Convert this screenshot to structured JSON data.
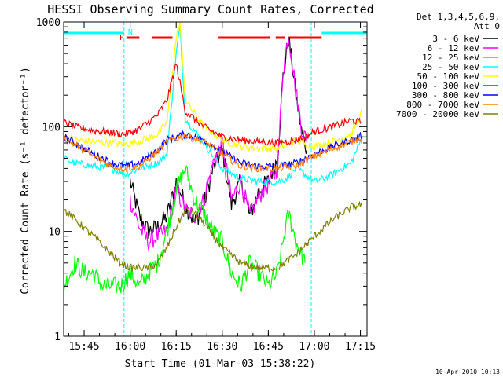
{
  "chart_data": {
    "type": "line",
    "title": "HESSI Observing Summary Count Rates, Corrected",
    "xlabel": "Start Time (01-Mar-03 15:38:22)",
    "ylabel": "Corrected Count Rate (s⁻¹ detector⁻¹)",
    "xlim": [
      15.6389,
      17.2861
    ],
    "ylim": [
      1,
      1000
    ],
    "yscale": "log",
    "x_ticks": [
      {
        "label": "15:45",
        "value": 15.75
      },
      {
        "label": "16:00",
        "value": 16.0
      },
      {
        "label": "16:15",
        "value": 16.25
      },
      {
        "label": "16:30",
        "value": 16.5
      },
      {
        "label": "16:45",
        "value": 16.75
      },
      {
        "label": "17:00",
        "value": 17.0
      },
      {
        "label": "17:15",
        "value": 17.25
      }
    ],
    "y_ticks": [
      {
        "label": "1",
        "value": 1
      },
      {
        "label": "10",
        "value": 10
      },
      {
        "label": "100",
        "value": 100
      },
      {
        "label": "1000",
        "value": 1000
      }
    ],
    "legend_header": [
      "Det 1,3,4,5,6,9,",
      "Att 0"
    ],
    "legend_position": "right",
    "timestamp": "10-Apr-2010 10:13",
    "night_flags": {
      "label": "N",
      "color": "#00ffff",
      "segments": [
        [
          15.6389,
          15.9667
        ],
        [
          17.04,
          17.2861
        ]
      ],
      "boundaries": [
        15.9667,
        16.9833,
        17.2861
      ]
    },
    "flare_flags": {
      "label": "F",
      "color": "#ff0000",
      "segments": [
        [
          15.98,
          16.05
        ],
        [
          16.12,
          16.23
        ],
        [
          16.48,
          16.76
        ],
        [
          16.79,
          16.84
        ],
        [
          16.86,
          17.04
        ]
      ]
    },
    "series": [
      {
        "name": "3 - 6 keV",
        "color": "#000000",
        "x": [
          16.0,
          16.05,
          16.1,
          16.15,
          16.2,
          16.25,
          16.3,
          16.35,
          16.4,
          16.45,
          16.5,
          16.55,
          16.6,
          16.65,
          16.7,
          16.75,
          16.8,
          16.83,
          16.86,
          16.88,
          16.9,
          16.93,
          16.96
        ],
        "y": [
          30,
          14,
          10,
          11,
          14,
          30,
          18,
          12,
          18,
          40,
          60,
          18,
          30,
          14,
          25,
          30,
          50,
          300,
          700,
          400,
          200,
          90,
          60
        ]
      },
      {
        "name": "6 - 12 keV",
        "color": "#ff00ff",
        "x": [
          16.0,
          16.05,
          16.1,
          16.15,
          16.2,
          16.25,
          16.3,
          16.35,
          16.4,
          16.45,
          16.5,
          16.55,
          16.6,
          16.65,
          16.7,
          16.75,
          16.8,
          16.83,
          16.86,
          16.88,
          16.9,
          16.93,
          16.96
        ],
        "y": [
          20,
          11,
          8,
          9,
          10,
          25,
          16,
          14,
          20,
          45,
          70,
          20,
          30,
          14,
          22,
          28,
          40,
          350,
          750,
          420,
          220,
          100,
          70
        ]
      },
      {
        "name": "12 - 25 keV",
        "color": "#00ff00",
        "x": [
          15.64,
          15.7,
          15.75,
          15.8,
          15.85,
          15.9,
          15.95,
          16.0,
          16.05,
          16.1,
          16.15,
          16.2,
          16.25,
          16.3,
          16.35,
          16.4,
          16.45,
          16.5,
          16.55,
          16.6,
          16.65,
          16.7,
          16.75,
          16.8,
          16.83,
          16.86,
          16.9,
          16.95
        ],
        "y": [
          3,
          5,
          4,
          4,
          3,
          3,
          3,
          4,
          3,
          4,
          5,
          10,
          25,
          40,
          20,
          15,
          10,
          8,
          4,
          3,
          5,
          4,
          3,
          4,
          8,
          15,
          8,
          5
        ]
      },
      {
        "name": "25 - 50 keV",
        "color": "#00ffff",
        "x": [
          15.64,
          15.7,
          15.8,
          15.9,
          15.97,
          16.05,
          16.15,
          16.2,
          16.25,
          16.27,
          16.3,
          16.4,
          16.5,
          16.6,
          16.7,
          16.8,
          16.85,
          16.9,
          16.95,
          17.0,
          17.05,
          17.1,
          17.15,
          17.2,
          17.26
        ],
        "y": [
          50,
          45,
          42,
          40,
          35,
          40,
          45,
          55,
          500,
          900,
          120,
          70,
          40,
          32,
          30,
          30,
          32,
          40,
          35,
          30,
          32,
          35,
          40,
          45,
          80
        ]
      },
      {
        "name": "50 - 100 keV",
        "color": "#ffff00",
        "x": [
          15.64,
          15.7,
          15.8,
          15.9,
          15.97,
          16.05,
          16.15,
          16.2,
          16.25,
          16.27,
          16.3,
          16.4,
          16.5,
          16.6,
          16.7,
          16.8,
          16.85,
          16.9,
          16.95,
          17.0,
          17.1,
          17.2,
          17.26
        ],
        "y": [
          80,
          75,
          72,
          70,
          68,
          72,
          85,
          110,
          700,
          1000,
          180,
          100,
          75,
          65,
          62,
          62,
          68,
          75,
          68,
          65,
          72,
          85,
          140
        ]
      },
      {
        "name": "100 - 300 keV",
        "color": "#ff0000",
        "x": [
          15.64,
          15.7,
          15.8,
          15.9,
          15.97,
          16.05,
          16.15,
          16.2,
          16.25,
          16.3,
          16.4,
          16.5,
          16.6,
          16.7,
          16.8,
          16.9,
          16.95,
          17.0,
          17.1,
          17.2,
          17.26
        ],
        "y": [
          110,
          100,
          92,
          88,
          85,
          95,
          130,
          180,
          400,
          140,
          100,
          80,
          75,
          72,
          70,
          75,
          80,
          90,
          100,
          115,
          110
        ]
      },
      {
        "name": "300 - 800 keV",
        "color": "#0000ff",
        "x": [
          15.64,
          15.7,
          15.8,
          15.9,
          15.97,
          16.05,
          16.15,
          16.2,
          16.3,
          16.4,
          16.5,
          16.6,
          16.7,
          16.8,
          16.9,
          17.0,
          17.1,
          17.2,
          17.26
        ],
        "y": [
          80,
          70,
          55,
          45,
          42,
          45,
          60,
          75,
          85,
          75,
          58,
          45,
          42,
          42,
          45,
          55,
          65,
          75,
          82
        ]
      },
      {
        "name": "800 - 7000 keV",
        "color": "#ff8000",
        "x": [
          15.64,
          15.7,
          15.8,
          15.9,
          15.97,
          16.05,
          16.15,
          16.2,
          16.3,
          16.4,
          16.5,
          16.6,
          16.7,
          16.8,
          16.9,
          17.0,
          17.1,
          17.2,
          17.26
        ],
        "y": [
          78,
          68,
          52,
          42,
          40,
          42,
          58,
          72,
          82,
          72,
          55,
          42,
          40,
          40,
          42,
          52,
          62,
          72,
          80
        ]
      },
      {
        "name": "7000 - 20000 keV",
        "color": "#808000",
        "x": [
          15.64,
          15.7,
          15.8,
          15.9,
          15.95,
          16.0,
          16.1,
          16.15,
          16.2,
          16.25,
          16.3,
          16.35,
          16.4,
          16.5,
          16.6,
          16.7,
          16.8,
          16.9,
          17.0,
          17.1,
          17.2,
          17.26
        ],
        "y": [
          16,
          13,
          9,
          6,
          5,
          4.5,
          4.5,
          5,
          7,
          11,
          16,
          15,
          12,
          7,
          5,
          4.5,
          4.5,
          6,
          9,
          13,
          17,
          18
        ]
      }
    ]
  }
}
